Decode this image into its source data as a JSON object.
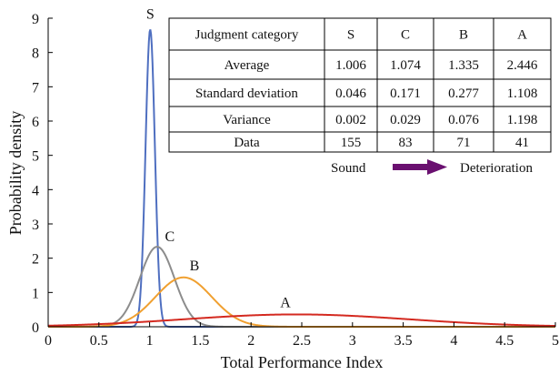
{
  "chart_data": {
    "type": "line",
    "xlabel": "Total Performance Index",
    "ylabel": "Probability density",
    "xlim": [
      0,
      5
    ],
    "ylim": [
      0,
      9
    ],
    "x_ticks": [
      0,
      0.5,
      1,
      1.5,
      2,
      2.5,
      3,
      3.5,
      4,
      4.5,
      5
    ],
    "y_ticks": [
      0,
      1,
      2,
      3,
      4,
      5,
      6,
      7,
      8,
      9
    ],
    "x_tick_labels": [
      "0",
      "0.5",
      "1",
      "1.5",
      "2",
      "2.5",
      "3",
      "3.5",
      "4",
      "4.5",
      "5"
    ],
    "y_tick_labels": [
      "0",
      "1",
      "2",
      "3",
      "4",
      "5",
      "6",
      "7",
      "8",
      "9"
    ],
    "grid": false,
    "series": [
      {
        "name": "S",
        "distribution": "normal",
        "mean": 1.006,
        "sd": 0.046,
        "color": "#4f6fc0"
      },
      {
        "name": "C",
        "distribution": "normal",
        "mean": 1.074,
        "sd": 0.171,
        "color": "#8c8c8c"
      },
      {
        "name": "B",
        "distribution": "normal",
        "mean": 1.335,
        "sd": 0.277,
        "color": "#f0a030"
      },
      {
        "name": "A",
        "distribution": "normal",
        "mean": 2.446,
        "sd": 1.108,
        "color": "#d42a20"
      }
    ],
    "table": {
      "header": [
        "Judgment category",
        "S",
        "C",
        "B",
        "A"
      ],
      "rows": [
        [
          "Average",
          "1.006",
          "1.074",
          "1.335",
          "2.446"
        ],
        [
          "Standard deviation",
          "0.046",
          "0.171",
          "0.277",
          "1.108"
        ],
        [
          "Variance",
          "0.002",
          "0.029",
          "0.076",
          "1.198"
        ],
        [
          "Data",
          "155",
          "83",
          "71",
          "41"
        ]
      ]
    },
    "arrow": {
      "from_label": "Sound",
      "to_label": "Deterioration",
      "color": "#6a1070"
    }
  }
}
